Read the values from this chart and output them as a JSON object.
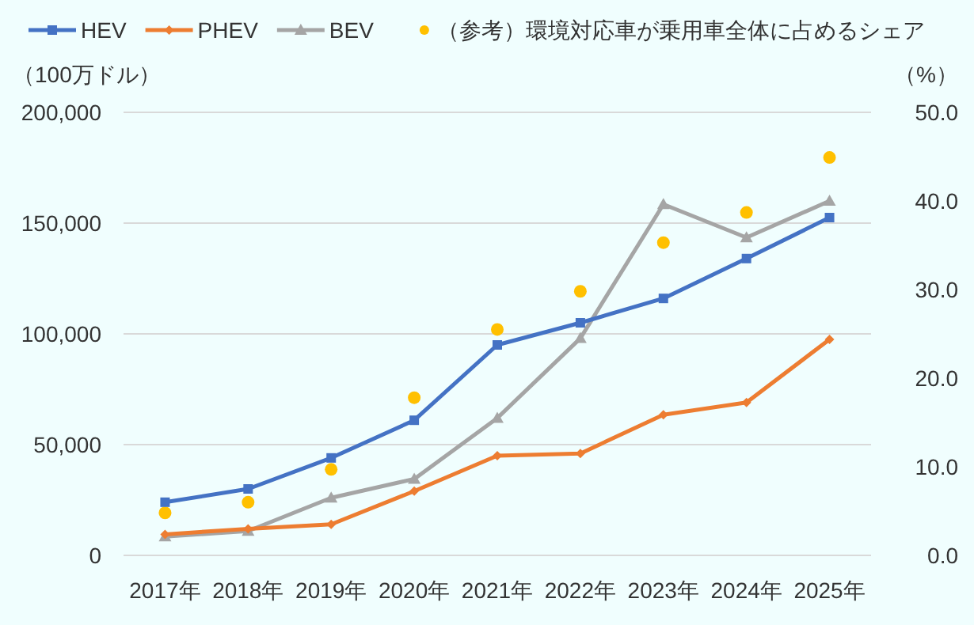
{
  "chart_data": {
    "type": "line",
    "ylabel": "（100万ドル）",
    "y2label": "（%）",
    "categories": [
      "2017年",
      "2018年",
      "2019年",
      "2020年",
      "2021年",
      "2022年",
      "2023年",
      "2024年",
      "2025年"
    ],
    "series": [
      {
        "name": "HEV",
        "color": "#4472c4",
        "marker": "square",
        "values": [
          24000,
          30000,
          44000,
          61000,
          95000,
          105000,
          116000,
          134000,
          152500
        ]
      },
      {
        "name": "PHEV",
        "color": "#ed7d31",
        "marker": "diamond",
        "values": [
          9500,
          12000,
          14000,
          29000,
          45000,
          46000,
          63500,
          69000,
          97500
        ]
      },
      {
        "name": "BEV",
        "color": "#a5a5a5",
        "marker": "triangle",
        "values": [
          8500,
          11000,
          26000,
          34500,
          62000,
          98000,
          158500,
          143500,
          160000
        ]
      },
      {
        "name": "（参考）環境対応車が乗用車全体に占めるシェア",
        "type": "scatter",
        "axis": "y2",
        "color": "#ffc000",
        "marker": "circle",
        "values": [
          4.8,
          6.0,
          9.7,
          17.8,
          25.5,
          29.8,
          35.3,
          38.7,
          44.9
        ]
      }
    ],
    "ylim": [
      0,
      200000
    ],
    "yticks": [
      {
        "value": 0,
        "label": "0"
      },
      {
        "value": 50000,
        "label": "50,000"
      },
      {
        "value": 100000,
        "label": "100,000"
      },
      {
        "value": 150000,
        "label": "150,000"
      },
      {
        "value": 200000,
        "label": "200,000"
      }
    ],
    "y2lim": [
      0,
      50
    ],
    "y2ticks": [
      {
        "value": 0,
        "label": "0.0"
      },
      {
        "value": 10,
        "label": "10.0"
      },
      {
        "value": 20,
        "label": "20.0"
      },
      {
        "value": 30,
        "label": "30.0"
      },
      {
        "value": 40,
        "label": "40.0"
      },
      {
        "value": 50,
        "label": "50.0"
      }
    ],
    "grid": "y",
    "legend": "top"
  }
}
